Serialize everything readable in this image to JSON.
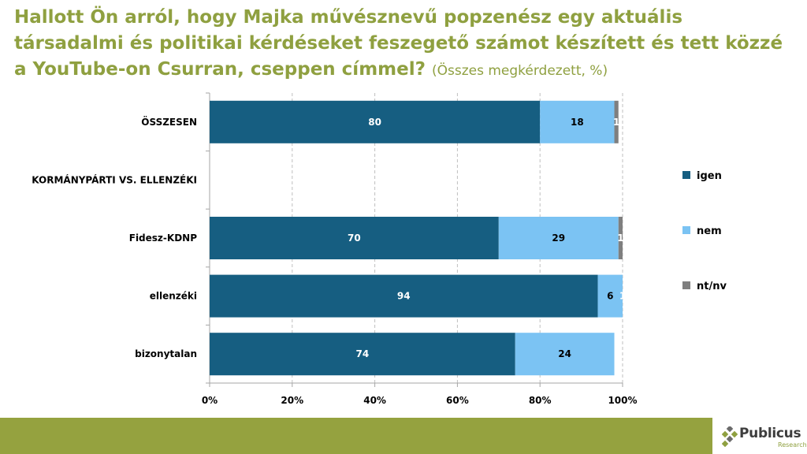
{
  "title": {
    "main": "Hallott Ön arról, hogy Majka művésznevű popzenész egy aktuális társadalmi és politikai kérdéseket feszegető számot készített és tett közzé a YouTube-on Csurran, cseppen címmel?",
    "subtitle": "(Összes megkérdezett, %)"
  },
  "logo": {
    "name": "Publicus",
    "sub": "Research"
  },
  "colors": {
    "title": "#8fa040",
    "footer": "#95a23f"
  },
  "chart_data": {
    "type": "bar",
    "orientation": "horizontal",
    "stacked": true,
    "categories": [
      "ÖSSZESEN",
      "KORMÁNYPÁRTI VS. ELLENZÉKI",
      "Fidesz-KDNP",
      "ellenzéki",
      "bizonytalan"
    ],
    "series": [
      {
        "name": "igen",
        "color": "#165e81",
        "values": [
          80,
          null,
          70,
          94,
          74
        ],
        "labels": [
          "80",
          "",
          "70",
          "94",
          "74"
        ]
      },
      {
        "name": "nem",
        "color": "#7bc3f3",
        "values": [
          18,
          null,
          29,
          6,
          24
        ],
        "labels": [
          "18",
          "",
          "29",
          "6",
          "24"
        ]
      },
      {
        "name": "nt/nv",
        "color": "#7f7f7f",
        "values": [
          1,
          null,
          1,
          1,
          0
        ],
        "labels": [
          "1",
          "",
          "1",
          "1",
          ""
        ]
      }
    ],
    "xlim": [
      0,
      100
    ],
    "xticks": [
      "0%",
      "20%",
      "40%",
      "60%",
      "80%",
      "100%"
    ],
    "grid": "vertical dashed",
    "legend": "right"
  }
}
